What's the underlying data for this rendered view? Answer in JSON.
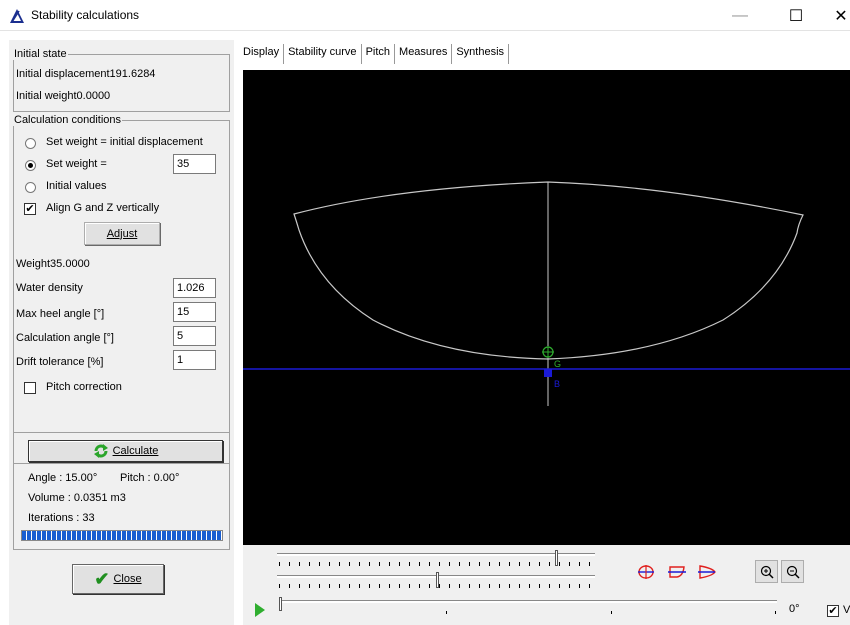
{
  "window": {
    "title": "Stability calculations",
    "minimize": "—",
    "maximize": "☐",
    "close": "✕"
  },
  "initial_state": {
    "legend": "Initial state",
    "displacement": "Initial displacement191.6284",
    "weight": "Initial weight0.0000"
  },
  "calc_conditions": {
    "legend": "Calculation conditions",
    "options": [
      {
        "label": "Set weight = initial displacement",
        "checked": false
      },
      {
        "label": "Set weight =",
        "checked": true
      },
      {
        "label": "Initial values",
        "checked": false
      }
    ],
    "set_weight_value": "35",
    "align_label": "Align G and Z vertically",
    "align_checked": true,
    "adjust_label": "Adjust",
    "weight_text": "Weight35.0000",
    "water_density_label": "Water density",
    "water_density_value": "1.026",
    "max_heel_label": "Max heel angle [°]",
    "max_heel_value": "15",
    "calc_angle_label": "Calculation angle [°]",
    "calc_angle_value": "5",
    "drift_label": "Drift tolerance [%]",
    "drift_value": "1",
    "pitch_correction_label": "Pitch correction",
    "pitch_correction_checked": false
  },
  "results": {
    "calculate_label": "Calculate",
    "angle": "Angle : 15.00°",
    "pitch": "Pitch : 0.00°",
    "volume": "Volume : 0.0351 m3",
    "iterations": "Iterations : 33",
    "progress": 1.0,
    "close_label": "Close"
  },
  "tabs": [
    {
      "label": "Display",
      "active": true
    },
    {
      "label": "Stability curve",
      "active": false
    },
    {
      "label": "Pitch",
      "active": false
    },
    {
      "label": "Measures",
      "active": false
    },
    {
      "label": "Synthesis",
      "active": false
    }
  ],
  "display": {
    "g_label": "G",
    "b_label": "B",
    "hull_color": "#c8c8c8",
    "waterline_color": "#1a1ad6",
    "g_color": "#2fae2f",
    "b_color": "#1a1ad6"
  },
  "bottom": {
    "angle_readout": "0°",
    "checkbox_label": "V",
    "checkbox_checked": true,
    "tool_icons": [
      "section-view-icon",
      "profile-view-icon",
      "plan-view-icon"
    ],
    "zoom_in_icon": "zoom-in-icon",
    "zoom_out_icon": "zoom-out-icon"
  }
}
